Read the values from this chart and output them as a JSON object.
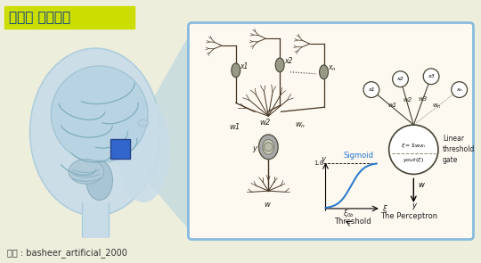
{
  "bg_color": "#eeeedd",
  "title_text": "뉴런과 인공뉴런",
  "title_bg": "#ccdd00",
  "title_color": "#003399",
  "source_text": "자료 : basheer_artificial_2000",
  "panel_bg": "#fdf8f0",
  "panel_border": "#88bbdd",
  "sigmoid_color": "#2277cc",
  "sigmoid_label": "Sigmoid",
  "threshold_label": "Threshold",
  "perceptron_label": "The Perceptron",
  "linear_label": "Linear\nthreshold\ngate",
  "head_color": "#c8dce8",
  "head_border": "#aaccdd",
  "brain_color": "#a0bece",
  "highlight_blue": "#3366cc",
  "trap_color": "#aaccdd",
  "neuron_body_color": "#888899",
  "neuron_line_color": "#443322",
  "text_color": "#222211"
}
